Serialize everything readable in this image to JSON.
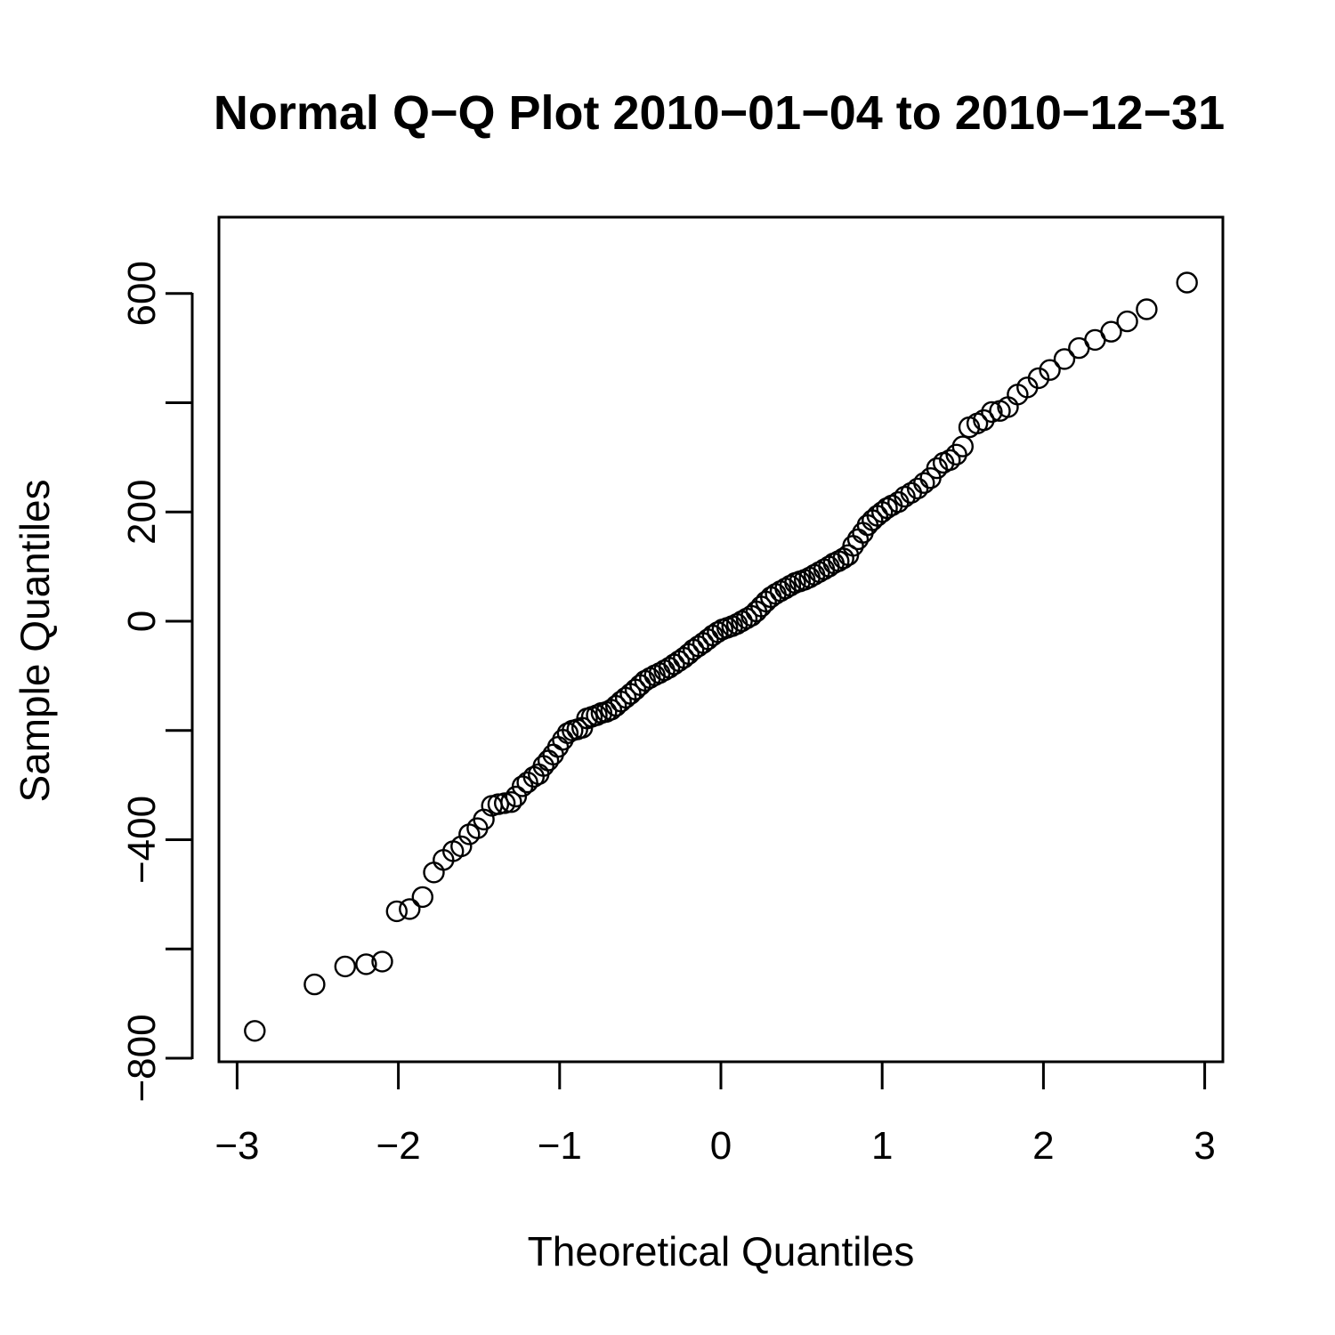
{
  "chart_data": {
    "type": "scatter",
    "title": "Normal Q−Q Plot 2010−01−04 to 2010−12−31",
    "xlabel": "Theoretical Quantiles",
    "ylabel": "Sample Quantiles",
    "xlim": [
      -3.1,
      3.1
    ],
    "ylim": [
      -800,
      680
    ],
    "x_ticks": [
      -3,
      -2,
      -1,
      0,
      1,
      2,
      3
    ],
    "x_tick_labels": [
      "−3",
      "−2",
      "−1",
      "0",
      "1",
      "2",
      "3"
    ],
    "y_ticks": [
      -800,
      -600,
      -400,
      -200,
      0,
      200,
      400,
      600
    ],
    "y_tick_labels": [
      "−800",
      "",
      "−400",
      "",
      "0",
      "200",
      "",
      "600"
    ],
    "grid": false,
    "legend": "none",
    "marker": "open circle",
    "points": [
      [
        -2.89,
        -750
      ],
      [
        -2.52,
        -665
      ],
      [
        -2.33,
        -632
      ],
      [
        -2.2,
        -628
      ],
      [
        -2.1,
        -623
      ],
      [
        -2.01,
        -531
      ],
      [
        -1.93,
        -527
      ],
      [
        -1.85,
        -505
      ],
      [
        -1.78,
        -460
      ],
      [
        -1.72,
        -437
      ],
      [
        -1.66,
        -421
      ],
      [
        -1.61,
        -412
      ],
      [
        -1.56,
        -390
      ],
      [
        -1.51,
        -379
      ],
      [
        -1.47,
        -363
      ],
      [
        -1.42,
        -338
      ],
      [
        -1.38,
        -335
      ],
      [
        -1.34,
        -333
      ],
      [
        -1.3,
        -331
      ],
      [
        -1.27,
        -321
      ],
      [
        -1.23,
        -302
      ],
      [
        -1.2,
        -295
      ],
      [
        -1.16,
        -285
      ],
      [
        -1.13,
        -280
      ],
      [
        -1.1,
        -265
      ],
      [
        -1.07,
        -255
      ],
      [
        -1.04,
        -244
      ],
      [
        -1.01,
        -230
      ],
      [
        -0.98,
        -217
      ],
      [
        -0.95,
        -205
      ],
      [
        -0.92,
        -200
      ],
      [
        -0.89,
        -198
      ],
      [
        -0.86,
        -195
      ],
      [
        -0.83,
        -178
      ],
      [
        -0.8,
        -175
      ],
      [
        -0.77,
        -172
      ],
      [
        -0.74,
        -168
      ],
      [
        -0.71,
        -166
      ],
      [
        -0.68,
        -162
      ],
      [
        -0.65,
        -155
      ],
      [
        -0.62,
        -147
      ],
      [
        -0.59,
        -140
      ],
      [
        -0.56,
        -133
      ],
      [
        -0.53,
        -125
      ],
      [
        -0.5,
        -117
      ],
      [
        -0.47,
        -109
      ],
      [
        -0.44,
        -104
      ],
      [
        -0.41,
        -99
      ],
      [
        -0.38,
        -95
      ],
      [
        -0.35,
        -90
      ],
      [
        -0.32,
        -85
      ],
      [
        -0.29,
        -79
      ],
      [
        -0.26,
        -73
      ],
      [
        -0.23,
        -67
      ],
      [
        -0.2,
        -60
      ],
      [
        -0.17,
        -52
      ],
      [
        -0.14,
        -46
      ],
      [
        -0.11,
        -40
      ],
      [
        -0.08,
        -33
      ],
      [
        -0.05,
        -26
      ],
      [
        -0.02,
        -20
      ],
      [
        0.01,
        -15
      ],
      [
        0.04,
        -12
      ],
      [
        0.07,
        -9
      ],
      [
        0.1,
        -5
      ],
      [
        0.13,
        0
      ],
      [
        0.16,
        5
      ],
      [
        0.19,
        10
      ],
      [
        0.22,
        18
      ],
      [
        0.25,
        27
      ],
      [
        0.28,
        36
      ],
      [
        0.31,
        44
      ],
      [
        0.34,
        50
      ],
      [
        0.37,
        55
      ],
      [
        0.4,
        60
      ],
      [
        0.43,
        65
      ],
      [
        0.46,
        70
      ],
      [
        0.49,
        73
      ],
      [
        0.52,
        76
      ],
      [
        0.55,
        80
      ],
      [
        0.58,
        85
      ],
      [
        0.61,
        90
      ],
      [
        0.64,
        95
      ],
      [
        0.67,
        100
      ],
      [
        0.7,
        106
      ],
      [
        0.73,
        110
      ],
      [
        0.76,
        115
      ],
      [
        0.79,
        121
      ],
      [
        0.82,
        138
      ],
      [
        0.85,
        150
      ],
      [
        0.88,
        162
      ],
      [
        0.91,
        176
      ],
      [
        0.94,
        185
      ],
      [
        0.97,
        193
      ],
      [
        1.0,
        200
      ],
      [
        1.03,
        207
      ],
      [
        1.06,
        212
      ],
      [
        1.1,
        218
      ],
      [
        1.14,
        228
      ],
      [
        1.18,
        235
      ],
      [
        1.22,
        243
      ],
      [
        1.26,
        253
      ],
      [
        1.3,
        262
      ],
      [
        1.34,
        280
      ],
      [
        1.38,
        290
      ],
      [
        1.42,
        295
      ],
      [
        1.46,
        305
      ],
      [
        1.5,
        320
      ],
      [
        1.54,
        355
      ],
      [
        1.59,
        362
      ],
      [
        1.63,
        368
      ],
      [
        1.68,
        383
      ],
      [
        1.73,
        385
      ],
      [
        1.78,
        392
      ],
      [
        1.84,
        415
      ],
      [
        1.9,
        428
      ],
      [
        1.97,
        445
      ],
      [
        2.04,
        460
      ],
      [
        2.13,
        480
      ],
      [
        2.22,
        500
      ],
      [
        2.32,
        515
      ],
      [
        2.42,
        530
      ],
      [
        2.52,
        549
      ],
      [
        2.64,
        571
      ],
      [
        2.89,
        620
      ]
    ]
  }
}
